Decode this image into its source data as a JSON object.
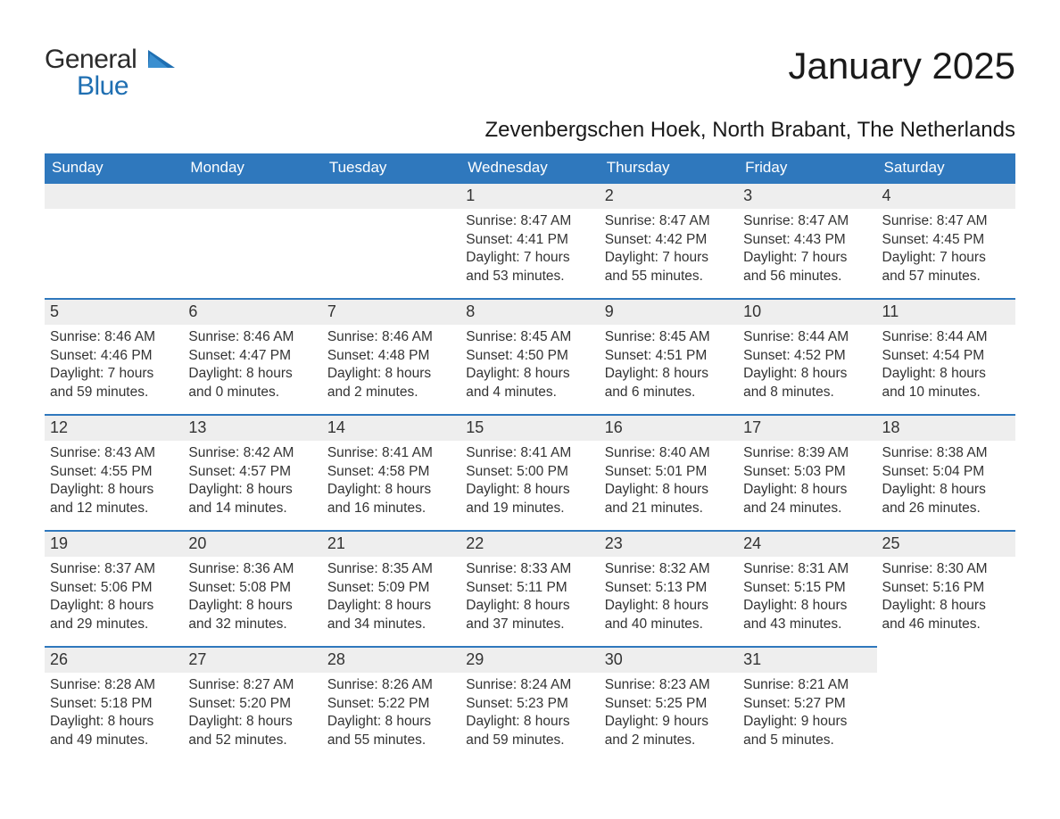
{
  "logo": {
    "word1": "General",
    "word2": "Blue"
  },
  "title": "January 2025",
  "subtitle": "Zevenbergschen Hoek, North Brabant, The Netherlands",
  "colors": {
    "header_bg": "#2f78bd",
    "header_text": "#ffffff",
    "daynum_bg": "#eeeeee",
    "daynum_border": "#2f78bd",
    "body_bg": "#ffffff",
    "text": "#333333",
    "logo_blue": "#1f6fb2"
  },
  "day_headers": [
    "Sunday",
    "Monday",
    "Tuesday",
    "Wednesday",
    "Thursday",
    "Friday",
    "Saturday"
  ],
  "labels": {
    "sunrise": "Sunrise: ",
    "sunset": "Sunset: ",
    "daylight": "Daylight: "
  },
  "weeks": [
    [
      null,
      null,
      null,
      {
        "n": "1",
        "sunrise": "8:47 AM",
        "sunset": "4:41 PM",
        "day_h": "7",
        "day_m": "53"
      },
      {
        "n": "2",
        "sunrise": "8:47 AM",
        "sunset": "4:42 PM",
        "day_h": "7",
        "day_m": "55"
      },
      {
        "n": "3",
        "sunrise": "8:47 AM",
        "sunset": "4:43 PM",
        "day_h": "7",
        "day_m": "56"
      },
      {
        "n": "4",
        "sunrise": "8:47 AM",
        "sunset": "4:45 PM",
        "day_h": "7",
        "day_m": "57"
      }
    ],
    [
      {
        "n": "5",
        "sunrise": "8:46 AM",
        "sunset": "4:46 PM",
        "day_h": "7",
        "day_m": "59"
      },
      {
        "n": "6",
        "sunrise": "8:46 AM",
        "sunset": "4:47 PM",
        "day_h": "8",
        "day_m": "0"
      },
      {
        "n": "7",
        "sunrise": "8:46 AM",
        "sunset": "4:48 PM",
        "day_h": "8",
        "day_m": "2"
      },
      {
        "n": "8",
        "sunrise": "8:45 AM",
        "sunset": "4:50 PM",
        "day_h": "8",
        "day_m": "4"
      },
      {
        "n": "9",
        "sunrise": "8:45 AM",
        "sunset": "4:51 PM",
        "day_h": "8",
        "day_m": "6"
      },
      {
        "n": "10",
        "sunrise": "8:44 AM",
        "sunset": "4:52 PM",
        "day_h": "8",
        "day_m": "8"
      },
      {
        "n": "11",
        "sunrise": "8:44 AM",
        "sunset": "4:54 PM",
        "day_h": "8",
        "day_m": "10"
      }
    ],
    [
      {
        "n": "12",
        "sunrise": "8:43 AM",
        "sunset": "4:55 PM",
        "day_h": "8",
        "day_m": "12"
      },
      {
        "n": "13",
        "sunrise": "8:42 AM",
        "sunset": "4:57 PM",
        "day_h": "8",
        "day_m": "14"
      },
      {
        "n": "14",
        "sunrise": "8:41 AM",
        "sunset": "4:58 PM",
        "day_h": "8",
        "day_m": "16"
      },
      {
        "n": "15",
        "sunrise": "8:41 AM",
        "sunset": "5:00 PM",
        "day_h": "8",
        "day_m": "19"
      },
      {
        "n": "16",
        "sunrise": "8:40 AM",
        "sunset": "5:01 PM",
        "day_h": "8",
        "day_m": "21"
      },
      {
        "n": "17",
        "sunrise": "8:39 AM",
        "sunset": "5:03 PM",
        "day_h": "8",
        "day_m": "24"
      },
      {
        "n": "18",
        "sunrise": "8:38 AM",
        "sunset": "5:04 PM",
        "day_h": "8",
        "day_m": "26"
      }
    ],
    [
      {
        "n": "19",
        "sunrise": "8:37 AM",
        "sunset": "5:06 PM",
        "day_h": "8",
        "day_m": "29"
      },
      {
        "n": "20",
        "sunrise": "8:36 AM",
        "sunset": "5:08 PM",
        "day_h": "8",
        "day_m": "32"
      },
      {
        "n": "21",
        "sunrise": "8:35 AM",
        "sunset": "5:09 PM",
        "day_h": "8",
        "day_m": "34"
      },
      {
        "n": "22",
        "sunrise": "8:33 AM",
        "sunset": "5:11 PM",
        "day_h": "8",
        "day_m": "37"
      },
      {
        "n": "23",
        "sunrise": "8:32 AM",
        "sunset": "5:13 PM",
        "day_h": "8",
        "day_m": "40"
      },
      {
        "n": "24",
        "sunrise": "8:31 AM",
        "sunset": "5:15 PM",
        "day_h": "8",
        "day_m": "43"
      },
      {
        "n": "25",
        "sunrise": "8:30 AM",
        "sunset": "5:16 PM",
        "day_h": "8",
        "day_m": "46"
      }
    ],
    [
      {
        "n": "26",
        "sunrise": "8:28 AM",
        "sunset": "5:18 PM",
        "day_h": "8",
        "day_m": "49"
      },
      {
        "n": "27",
        "sunrise": "8:27 AM",
        "sunset": "5:20 PM",
        "day_h": "8",
        "day_m": "52"
      },
      {
        "n": "28",
        "sunrise": "8:26 AM",
        "sunset": "5:22 PM",
        "day_h": "8",
        "day_m": "55"
      },
      {
        "n": "29",
        "sunrise": "8:24 AM",
        "sunset": "5:23 PM",
        "day_h": "8",
        "day_m": "59"
      },
      {
        "n": "30",
        "sunrise": "8:23 AM",
        "sunset": "5:25 PM",
        "day_h": "9",
        "day_m": "2"
      },
      {
        "n": "31",
        "sunrise": "8:21 AM",
        "sunset": "5:27 PM",
        "day_h": "9",
        "day_m": "5"
      },
      null
    ]
  ]
}
